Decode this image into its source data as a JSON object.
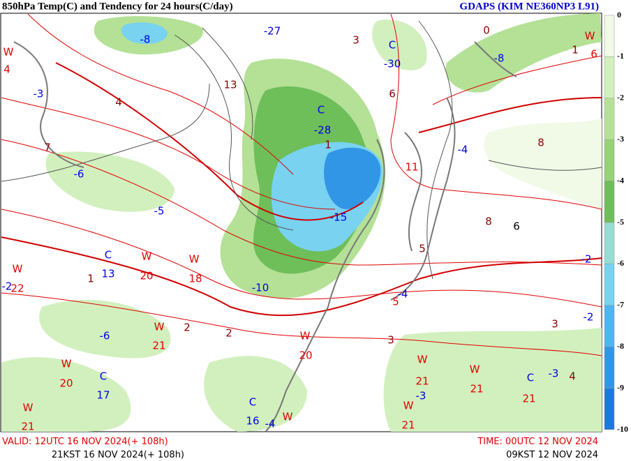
{
  "header": {
    "title": "850hPa Temp(C) and Tendency for 24 hours(C/day)",
    "model": "GDAPS (KIM NE360NP3 L91)"
  },
  "colorbar": {
    "labels": [
      "0",
      "-1",
      "-2",
      "-3",
      "-4",
      "-5",
      "-6",
      "-7",
      "-8",
      "-9",
      "-10"
    ],
    "colors": [
      "#f0fae6",
      "#d2f0be",
      "#b4e196",
      "#96d278",
      "#6ebe5a",
      "#96dcd2",
      "#78d2f0",
      "#50b4f0",
      "#3296e6",
      "#1e78dc"
    ]
  },
  "map": {
    "labels": [
      {
        "text": "W",
        "color": "#e00000"
      },
      {
        "text": "4",
        "color": "#e00000"
      },
      {
        "text": "-3",
        "color": "#0000e0"
      },
      {
        "text": "4",
        "color": "#8b0000"
      },
      {
        "text": "7",
        "color": "#8b0000"
      },
      {
        "text": "-6",
        "color": "#0000e0"
      },
      {
        "text": "-5",
        "color": "#0000e0"
      },
      {
        "text": "13",
        "color": "#8b0000"
      },
      {
        "text": "-8",
        "color": "#0000e0"
      },
      {
        "text": "-27",
        "color": "#0000e0"
      },
      {
        "text": "C",
        "color": "#0000e0"
      },
      {
        "text": "-28",
        "color": "#0000e0"
      },
      {
        "text": "1",
        "color": "#8b0000"
      },
      {
        "text": "-15",
        "color": "#0000e0"
      },
      {
        "text": "-10",
        "color": "#0000e0"
      },
      {
        "text": "3",
        "color": "#8b0000"
      },
      {
        "text": "C",
        "color": "#0000e0"
      },
      {
        "text": "-30",
        "color": "#0000e0"
      },
      {
        "text": "6",
        "color": "#8b0000"
      },
      {
        "text": "11",
        "color": "#e00000"
      },
      {
        "text": "-4",
        "color": "#0000e0"
      },
      {
        "text": "8",
        "color": "#8b0000"
      },
      {
        "text": "8",
        "color": "#8b0000"
      },
      {
        "text": "6",
        "color": "#000000"
      },
      {
        "text": "5",
        "color": "#8b0000"
      },
      {
        "text": "W",
        "color": "#e00000"
      },
      {
        "text": "6",
        "color": "#e00000"
      },
      {
        "text": "0",
        "color": "#8b0000"
      },
      {
        "text": "-8",
        "color": "#0000e0"
      },
      {
        "text": "1",
        "color": "#8b0000"
      },
      {
        "text": "-2",
        "color": "#0000e0"
      },
      {
        "text": "C",
        "color": "#0000e0"
      },
      {
        "text": "13",
        "color": "#0000e0"
      },
      {
        "text": "W",
        "color": "#e00000"
      },
      {
        "text": "20",
        "color": "#e00000"
      },
      {
        "text": "W",
        "color": "#e00000"
      },
      {
        "text": "18",
        "color": "#e00000"
      },
      {
        "text": "1",
        "color": "#8b0000"
      },
      {
        "text": "W",
        "color": "#e00000"
      },
      {
        "text": "22",
        "color": "#e00000"
      },
      {
        "text": "-2",
        "color": "#0000e0"
      },
      {
        "text": "-4",
        "color": "#0000e0"
      },
      {
        "text": "5",
        "color": "#e00000"
      },
      {
        "text": "-6",
        "color": "#0000e0"
      },
      {
        "text": "W",
        "color": "#e00000"
      },
      {
        "text": "21",
        "color": "#e00000"
      },
      {
        "text": "2",
        "color": "#8b0000"
      },
      {
        "text": "2",
        "color": "#8b0000"
      },
      {
        "text": "W",
        "color": "#e00000"
      },
      {
        "text": "20",
        "color": "#e00000"
      },
      {
        "text": "3",
        "color": "#8b0000"
      },
      {
        "text": "W",
        "color": "#e00000"
      },
      {
        "text": "21",
        "color": "#e00000"
      },
      {
        "text": "W",
        "color": "#e00000"
      },
      {
        "text": "21",
        "color": "#e00000"
      },
      {
        "text": "C",
        "color": "#0000e0"
      },
      {
        "text": "21",
        "color": "#e00000"
      },
      {
        "text": "W",
        "color": "#e00000"
      },
      {
        "text": "20",
        "color": "#e00000"
      },
      {
        "text": "C",
        "color": "#0000e0"
      },
      {
        "text": "17",
        "color": "#0000e0"
      },
      {
        "text": "W",
        "color": "#e00000"
      },
      {
        "text": "21",
        "color": "#e00000"
      },
      {
        "text": "C",
        "color": "#0000e0"
      },
      {
        "text": "16",
        "color": "#0000e0"
      },
      {
        "text": "-4",
        "color": "#0000e0"
      },
      {
        "text": "W",
        "color": "#e00000"
      },
      {
        "text": "W",
        "color": "#e00000"
      },
      {
        "text": "21",
        "color": "#e00000"
      },
      {
        "text": "-3",
        "color": "#0000e0"
      },
      {
        "text": "-3",
        "color": "#0000e0"
      },
      {
        "text": "3",
        "color": "#8b0000"
      },
      {
        "text": "-2",
        "color": "#0000e0"
      },
      {
        "text": "4",
        "color": "#8b0000"
      }
    ]
  },
  "footer": {
    "valid_utc": "VALID: 12UTC 16 NOV 2024(+ 108h)",
    "valid_kst": "21KST 16 NOV 2024(+ 108h)",
    "time_utc": "TIME: 00UTC 12 NOV 2024",
    "time_kst": "09KST 12 NOV 2024"
  }
}
